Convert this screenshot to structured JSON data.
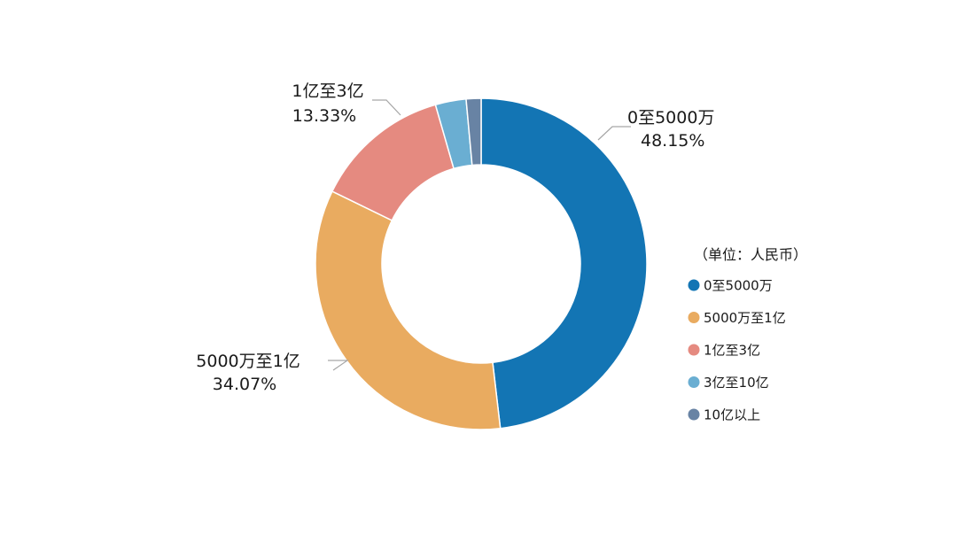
{
  "chart_data": {
    "type": "pie",
    "variant": "donut",
    "unit_note": "（单位：人民币）",
    "series": [
      {
        "name": "0至5000万",
        "value": 48.15,
        "label": "48.15%",
        "color": "#1375b4"
      },
      {
        "name": "5000万至1亿",
        "value": 34.07,
        "label": "34.07%",
        "color": "#e9ab60"
      },
      {
        "name": "1亿至3亿",
        "value": 13.33,
        "label": "13.33%",
        "color": "#e58a80"
      },
      {
        "name": "3亿至10亿",
        "value": 3.0,
        "label": "",
        "color": "#6aaed2"
      },
      {
        "name": "10亿以上",
        "value": 1.45,
        "label": "",
        "color": "#6883a4"
      }
    ],
    "legend_position": "right"
  }
}
